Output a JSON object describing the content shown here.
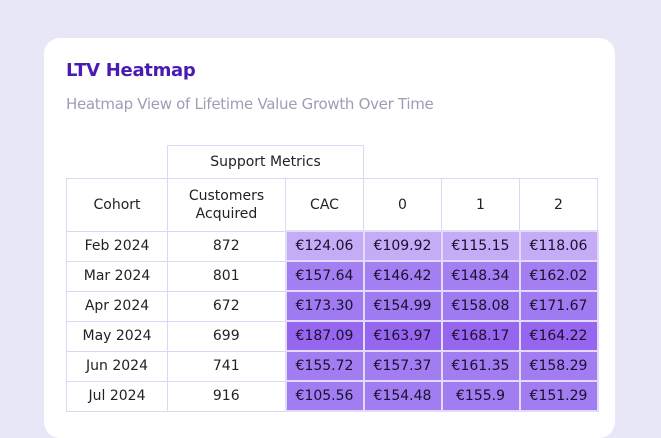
{
  "header": {
    "title": "LTV Heatmap",
    "subtitle": "Heatmap View of Lifetime Value Growth Over Time"
  },
  "chart_data": {
    "type": "heatmap",
    "title": "LTV Heatmap",
    "subtitle": "Heatmap View of Lifetime Value Growth Over Time",
    "group_header": "Support Metrics",
    "columns": [
      "Cohort",
      "Customers Acquired",
      "CAC",
      "0",
      "1",
      "2"
    ],
    "rows": [
      {
        "cohort": "Feb 2024",
        "customers": "872",
        "values": [
          "€124.06",
          "€109.92",
          "€115.15",
          "€118.06"
        ],
        "color": "#c4acf6"
      },
      {
        "cohort": "Mar 2024",
        "customers": "801",
        "values": [
          "€157.64",
          "€146.42",
          "€148.34",
          "€162.02"
        ],
        "color": "#a47ff2"
      },
      {
        "cohort": "Apr 2024",
        "customers": "672",
        "values": [
          "€173.30",
          "€154.99",
          "€158.08",
          "€171.67"
        ],
        "color": "#a07af1"
      },
      {
        "cohort": "May 2024",
        "customers": "699",
        "values": [
          "€187.09",
          "€163.97",
          "€168.17",
          "€164.22"
        ],
        "color": "#9766ee"
      },
      {
        "cohort": "Jun 2024",
        "customers": "741",
        "values": [
          "€155.72",
          "€157.37",
          "€161.35",
          "€158.29"
        ],
        "color": "#a27df1"
      },
      {
        "cohort": "Jul 2024",
        "customers": "916",
        "values": [
          "€105.56",
          "€154.48",
          "€155.9",
          "€151.29"
        ],
        "color": "#a27df1"
      }
    ]
  }
}
